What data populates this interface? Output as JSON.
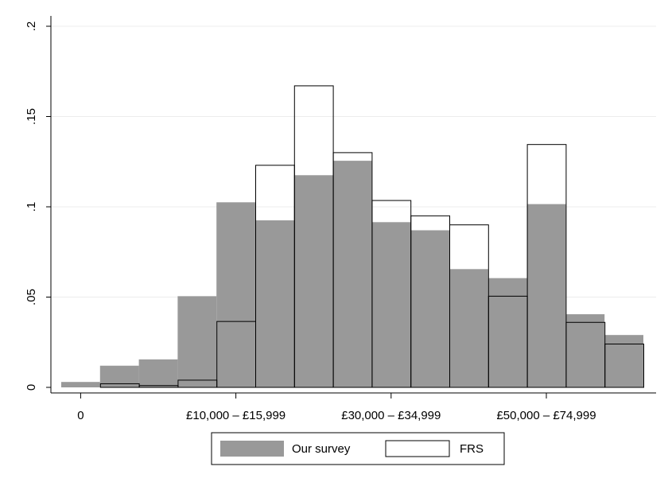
{
  "chart_data": {
    "type": "bar",
    "title": "",
    "xlabel": "",
    "ylabel": "",
    "ylim": [
      0,
      0.2
    ],
    "yticks": [
      0,
      0.05,
      0.1,
      0.15,
      0.2
    ],
    "ytick_labels": [
      "0",
      ".05",
      ".1",
      ".15",
      ".2"
    ],
    "xtick_labels": [
      {
        "bin": 0,
        "label": "0"
      },
      {
        "bin": 4,
        "label": "£10,000 – £15,999"
      },
      {
        "bin": 8,
        "label": "£30,000 – £34,999"
      },
      {
        "bin": 12,
        "label": "£50,000 – £74,999"
      }
    ],
    "n_bins": 15,
    "grid": true,
    "legend_position": "bottom",
    "series": [
      {
        "name": "Our survey",
        "style": "filled",
        "color": "#999999",
        "values": [
          0.003,
          0.012,
          0.0155,
          0.0505,
          0.1025,
          0.0925,
          0.1175,
          0.1255,
          0.0915,
          0.087,
          0.0655,
          0.0605,
          0.1015,
          0.0405,
          0.029
        ]
      },
      {
        "name": "FRS",
        "style": "outline",
        "color": "#000000",
        "values": [
          0,
          0.002,
          0.001,
          0.004,
          0.0365,
          0.123,
          0.167,
          0.13,
          0.1035,
          0.095,
          0.09,
          0.0505,
          0.1345,
          0.036,
          0.024
        ]
      }
    ]
  }
}
